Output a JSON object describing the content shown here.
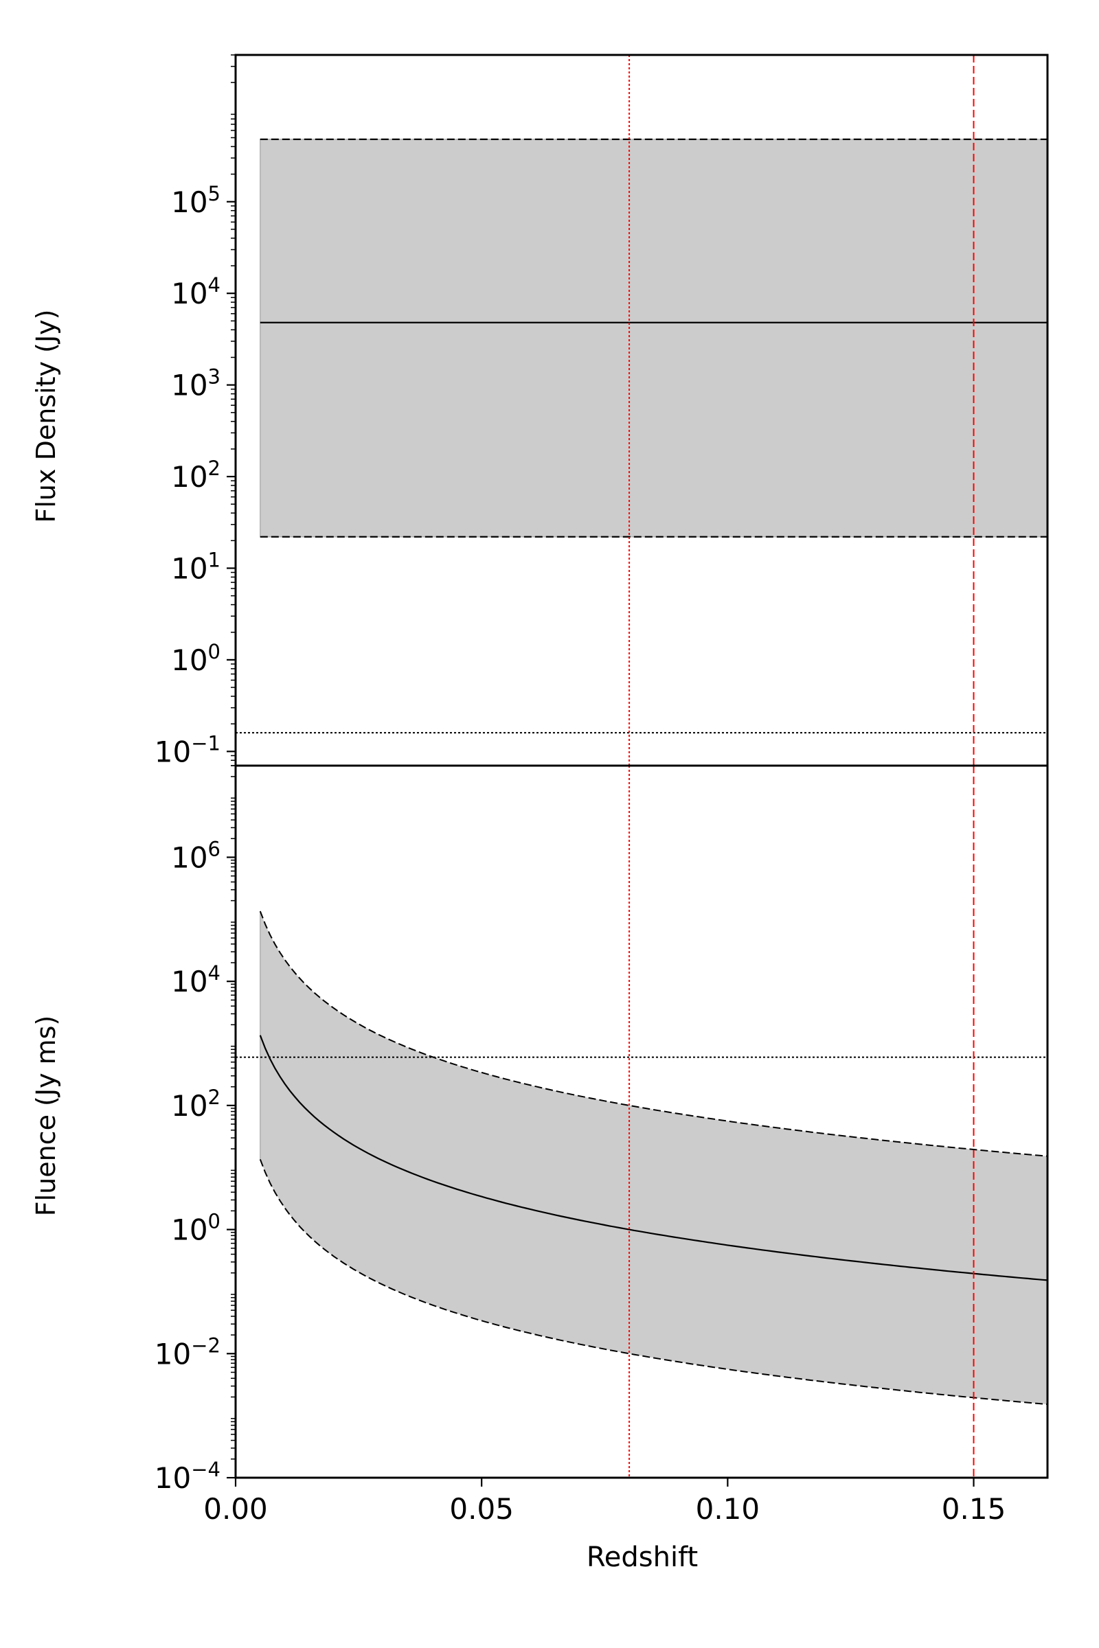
{
  "chart_data": [
    {
      "panel": "top",
      "type": "area",
      "ylabel": "Flux Density (Jy)",
      "xlabel": "",
      "yscale": "log",
      "xlim": [
        0.0,
        0.165
      ],
      "ylim": [
        0.07,
        4000000
      ],
      "yticks": [
        {
          "base": "10",
          "exp": "5",
          "value": 100000
        },
        {
          "base": "10",
          "exp": "4",
          "value": 10000
        },
        {
          "base": "10",
          "exp": "3",
          "value": 1000
        },
        {
          "base": "10",
          "exp": "2",
          "value": 100
        },
        {
          "base": "10",
          "exp": "1",
          "value": 10
        },
        {
          "base": "10",
          "exp": "0",
          "value": 1
        },
        {
          "base": "10",
          "exp": "−1",
          "value": 0.1
        }
      ],
      "shaded_band": {
        "x": [
          0.005,
          0.165
        ],
        "lower": [
          22,
          22
        ],
        "upper": [
          480000,
          480000
        ],
        "color": "#cccccc"
      },
      "series": [
        {
          "style": "solid",
          "color": "#000000",
          "x": [
            0.005,
            0.165
          ],
          "y": [
            4800,
            4800
          ]
        },
        {
          "style": "dashed",
          "color": "#000000",
          "x": [
            0.005,
            0.165
          ],
          "y": [
            480000,
            480000
          ]
        },
        {
          "style": "dashed",
          "color": "#000000",
          "x": [
            0.005,
            0.165
          ],
          "y": [
            22,
            22
          ]
        }
      ],
      "hlines": [
        {
          "y": 0.16,
          "style": "dotted",
          "color": "#000000"
        }
      ],
      "vlines": [
        {
          "x": 0.08,
          "style": "dotted",
          "color": "#ff0000"
        },
        {
          "x": 0.15,
          "style": "dashed",
          "color": "#ff0000"
        }
      ],
      "grid": false
    },
    {
      "panel": "bottom",
      "type": "area",
      "ylabel": "Fluence (Jy ms)",
      "xlabel": "Redshift",
      "yscale": "log",
      "xlim": [
        0.0,
        0.165
      ],
      "ylim": [
        0.0001,
        30000000
      ],
      "xticks": [
        "0.00",
        "0.05",
        "0.10",
        "0.15"
      ],
      "xtick_values": [
        0.0,
        0.05,
        0.1,
        0.15
      ],
      "yticks": [
        {
          "base": "10",
          "exp": "6",
          "value": 1000000
        },
        {
          "base": "10",
          "exp": "4",
          "value": 10000
        },
        {
          "base": "10",
          "exp": "2",
          "value": 100
        },
        {
          "base": "10",
          "exp": "0",
          "value": 1
        },
        {
          "base": "10",
          "exp": "−2",
          "value": 0.01
        },
        {
          "base": "10",
          "exp": "−4",
          "value": 0.0001
        }
      ],
      "shaded_band": {
        "x_from": 0.005,
        "x_to": 0.165,
        "color": "#cccccc"
      },
      "curves": {
        "x_range": [
          0.005,
          0.165
        ],
        "model": "y = A * (0.08 / z)^2.6",
        "central_A": 1.0,
        "upper_A": 100,
        "lower_A": 0.01
      },
      "hlines": [
        {
          "y": 600,
          "style": "dotted",
          "color": "#000000"
        }
      ],
      "vlines": [
        {
          "x": 0.08,
          "style": "dotted",
          "color": "#ff0000"
        },
        {
          "x": 0.15,
          "style": "dashed",
          "color": "#ff0000"
        }
      ],
      "grid": false
    }
  ]
}
